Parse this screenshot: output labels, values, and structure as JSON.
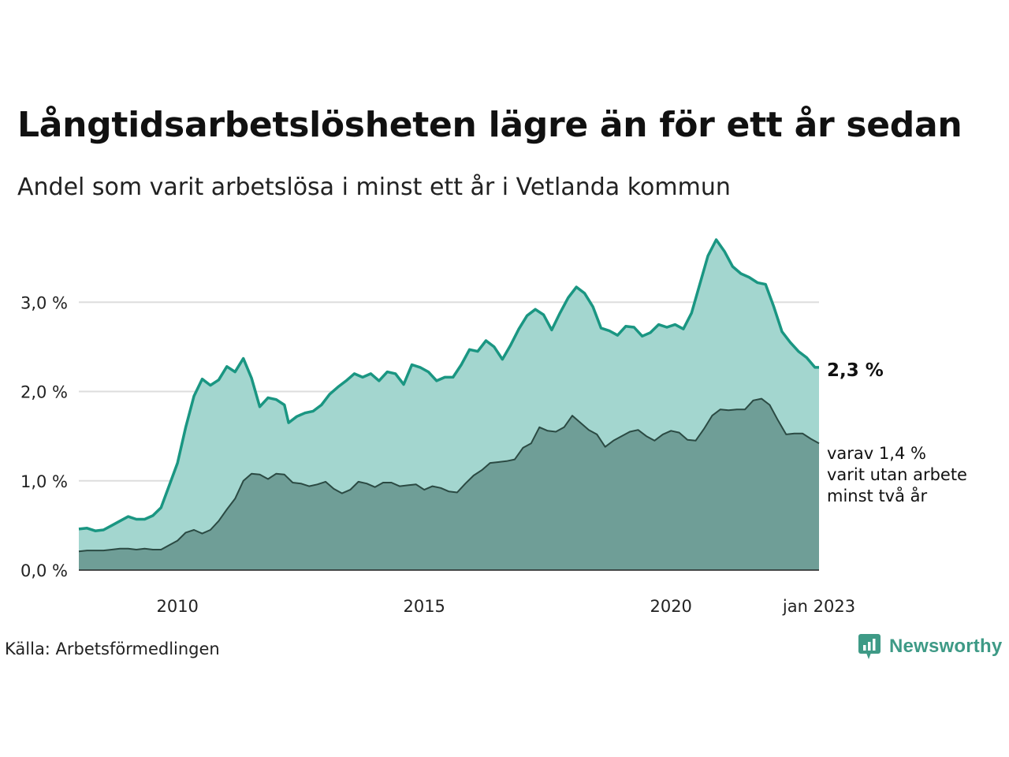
{
  "title": "Långtidsarbetslösheten lägre än för ett år sedan",
  "subtitle": "Andel som varit arbetslösa i minst ett år i Vetlanda kommun",
  "source": "Källa: Arbetsförmedlingen",
  "brand": {
    "name": "Newsworthy",
    "logo_icon": "newsworthy-logo-icon",
    "color": "#3e9a86"
  },
  "colors": {
    "series1_line": "#1a9682",
    "series1_fill": "#a3d6cf",
    "series2_line": "#2b4a43",
    "series2_fill": "#6f9e97",
    "grid": "#dddddd"
  },
  "chart_data": {
    "type": "area",
    "xlim": [
      "2008-01",
      "2023-01"
    ],
    "ylim": [
      0,
      3.7
    ],
    "y_ticks": [
      0,
      1,
      2,
      3
    ],
    "y_tick_labels": [
      "0,0 %",
      "1,0 %",
      "2,0 %",
      "3,0 %"
    ],
    "x_tick_values": [
      "2010-01",
      "2015-01",
      "2020-01",
      "2023-01"
    ],
    "x_tick_labels": [
      "2010",
      "2015",
      "2020",
      "jan 2023"
    ],
    "grid": true,
    "end_labels": [
      "2,3 %",
      "varav 1,4 %",
      "varit utan arbete",
      "minst två år"
    ],
    "series": [
      {
        "points": [
          [
            "2008-01",
            0.46
          ],
          [
            "2008-03",
            0.47
          ],
          [
            "2008-05",
            0.44
          ],
          [
            "2008-07",
            0.45
          ],
          [
            "2008-09",
            0.5
          ],
          [
            "2008-11",
            0.55
          ],
          [
            "2009-01",
            0.6
          ],
          [
            "2009-03",
            0.57
          ],
          [
            "2009-05",
            0.57
          ],
          [
            "2009-07",
            0.61
          ],
          [
            "2009-09",
            0.7
          ],
          [
            "2009-11",
            0.95
          ],
          [
            "2010-01",
            1.2
          ],
          [
            "2010-03",
            1.6
          ],
          [
            "2010-05",
            1.95
          ],
          [
            "2010-07",
            2.14
          ],
          [
            "2010-09",
            2.07
          ],
          [
            "2010-11",
            2.13
          ],
          [
            "2011-01",
            2.28
          ],
          [
            "2011-03",
            2.22
          ],
          [
            "2011-05",
            2.37
          ],
          [
            "2011-07",
            2.15
          ],
          [
            "2011-09",
            1.83
          ],
          [
            "2011-11",
            1.93
          ],
          [
            "2012-01",
            1.91
          ],
          [
            "2012-03",
            1.85
          ],
          [
            "2012-04",
            1.65
          ],
          [
            "2012-06",
            1.72
          ],
          [
            "2012-08",
            1.76
          ],
          [
            "2012-10",
            1.78
          ],
          [
            "2012-12",
            1.85
          ],
          [
            "2013-02",
            1.97
          ],
          [
            "2013-04",
            2.05
          ],
          [
            "2013-06",
            2.12
          ],
          [
            "2013-08",
            2.2
          ],
          [
            "2013-10",
            2.16
          ],
          [
            "2013-12",
            2.2
          ],
          [
            "2014-02",
            2.12
          ],
          [
            "2014-04",
            2.22
          ],
          [
            "2014-06",
            2.2
          ],
          [
            "2014-08",
            2.08
          ],
          [
            "2014-10",
            2.3
          ],
          [
            "2014-12",
            2.27
          ],
          [
            "2015-02",
            2.22
          ],
          [
            "2015-04",
            2.12
          ],
          [
            "2015-06",
            2.16
          ],
          [
            "2015-08",
            2.16
          ],
          [
            "2015-10",
            2.3
          ],
          [
            "2015-12",
            2.47
          ],
          [
            "2016-02",
            2.45
          ],
          [
            "2016-04",
            2.57
          ],
          [
            "2016-06",
            2.5
          ],
          [
            "2016-08",
            2.36
          ],
          [
            "2016-10",
            2.52
          ],
          [
            "2016-12",
            2.7
          ],
          [
            "2017-02",
            2.85
          ],
          [
            "2017-04",
            2.92
          ],
          [
            "2017-06",
            2.86
          ],
          [
            "2017-08",
            2.69
          ],
          [
            "2017-10",
            2.88
          ],
          [
            "2017-12",
            3.05
          ],
          [
            "2018-02",
            3.17
          ],
          [
            "2018-04",
            3.1
          ],
          [
            "2018-06",
            2.95
          ],
          [
            "2018-08",
            2.71
          ],
          [
            "2018-10",
            2.68
          ],
          [
            "2018-12",
            2.63
          ],
          [
            "2019-02",
            2.73
          ],
          [
            "2019-04",
            2.72
          ],
          [
            "2019-06",
            2.62
          ],
          [
            "2019-08",
            2.66
          ],
          [
            "2019-10",
            2.75
          ],
          [
            "2019-12",
            2.72
          ],
          [
            "2020-02",
            2.75
          ],
          [
            "2020-04",
            2.7
          ],
          [
            "2020-06",
            2.88
          ],
          [
            "2020-08",
            3.2
          ],
          [
            "2020-10",
            3.52
          ],
          [
            "2020-12",
            3.7
          ],
          [
            "2021-02",
            3.57
          ],
          [
            "2021-04",
            3.4
          ],
          [
            "2021-06",
            3.32
          ],
          [
            "2021-08",
            3.28
          ],
          [
            "2021-10",
            3.22
          ],
          [
            "2021-12",
            3.2
          ],
          [
            "2022-02",
            2.95
          ],
          [
            "2022-04",
            2.67
          ],
          [
            "2022-06",
            2.55
          ],
          [
            "2022-08",
            2.45
          ],
          [
            "2022-10",
            2.38
          ],
          [
            "2022-12",
            2.27
          ],
          [
            "2023-01",
            2.27
          ]
        ]
      },
      {
        "points": [
          [
            "2008-01",
            0.21
          ],
          [
            "2008-03",
            0.22
          ],
          [
            "2008-05",
            0.22
          ],
          [
            "2008-07",
            0.22
          ],
          [
            "2008-09",
            0.23
          ],
          [
            "2008-11",
            0.24
          ],
          [
            "2009-01",
            0.24
          ],
          [
            "2009-03",
            0.23
          ],
          [
            "2009-05",
            0.24
          ],
          [
            "2009-07",
            0.23
          ],
          [
            "2009-09",
            0.23
          ],
          [
            "2009-11",
            0.28
          ],
          [
            "2010-01",
            0.33
          ],
          [
            "2010-03",
            0.42
          ],
          [
            "2010-05",
            0.45
          ],
          [
            "2010-07",
            0.41
          ],
          [
            "2010-09",
            0.45
          ],
          [
            "2010-11",
            0.55
          ],
          [
            "2011-01",
            0.68
          ],
          [
            "2011-03",
            0.8
          ],
          [
            "2011-05",
            1.0
          ],
          [
            "2011-07",
            1.08
          ],
          [
            "2011-09",
            1.07
          ],
          [
            "2011-11",
            1.02
          ],
          [
            "2012-01",
            1.08
          ],
          [
            "2012-03",
            1.07
          ],
          [
            "2012-05",
            0.98
          ],
          [
            "2012-07",
            0.97
          ],
          [
            "2012-09",
            0.94
          ],
          [
            "2012-11",
            0.96
          ],
          [
            "2013-01",
            0.99
          ],
          [
            "2013-03",
            0.91
          ],
          [
            "2013-05",
            0.86
          ],
          [
            "2013-07",
            0.9
          ],
          [
            "2013-09",
            0.99
          ],
          [
            "2013-11",
            0.97
          ],
          [
            "2014-01",
            0.93
          ],
          [
            "2014-03",
            0.98
          ],
          [
            "2014-05",
            0.98
          ],
          [
            "2014-07",
            0.94
          ],
          [
            "2014-09",
            0.95
          ],
          [
            "2014-11",
            0.96
          ],
          [
            "2015-01",
            0.9
          ],
          [
            "2015-03",
            0.94
          ],
          [
            "2015-05",
            0.92
          ],
          [
            "2015-07",
            0.88
          ],
          [
            "2015-09",
            0.87
          ],
          [
            "2015-11",
            0.97
          ],
          [
            "2016-01",
            1.06
          ],
          [
            "2016-03",
            1.12
          ],
          [
            "2016-05",
            1.2
          ],
          [
            "2016-07",
            1.21
          ],
          [
            "2016-09",
            1.22
          ],
          [
            "2016-11",
            1.24
          ],
          [
            "2017-01",
            1.37
          ],
          [
            "2017-03",
            1.42
          ],
          [
            "2017-05",
            1.6
          ],
          [
            "2017-07",
            1.56
          ],
          [
            "2017-09",
            1.55
          ],
          [
            "2017-11",
            1.6
          ],
          [
            "2018-01",
            1.73
          ],
          [
            "2018-03",
            1.65
          ],
          [
            "2018-05",
            1.57
          ],
          [
            "2018-07",
            1.52
          ],
          [
            "2018-09",
            1.38
          ],
          [
            "2018-11",
            1.45
          ],
          [
            "2019-01",
            1.5
          ],
          [
            "2019-03",
            1.55
          ],
          [
            "2019-05",
            1.57
          ],
          [
            "2019-07",
            1.5
          ],
          [
            "2019-09",
            1.45
          ],
          [
            "2019-11",
            1.52
          ],
          [
            "2020-01",
            1.56
          ],
          [
            "2020-03",
            1.54
          ],
          [
            "2020-05",
            1.46
          ],
          [
            "2020-07",
            1.45
          ],
          [
            "2020-09",
            1.58
          ],
          [
            "2020-11",
            1.73
          ],
          [
            "2021-01",
            1.8
          ],
          [
            "2021-03",
            1.79
          ],
          [
            "2021-05",
            1.8
          ],
          [
            "2021-07",
            1.8
          ],
          [
            "2021-09",
            1.9
          ],
          [
            "2021-11",
            1.92
          ],
          [
            "2022-01",
            1.85
          ],
          [
            "2022-03",
            1.68
          ],
          [
            "2022-05",
            1.52
          ],
          [
            "2022-07",
            1.53
          ],
          [
            "2022-09",
            1.53
          ],
          [
            "2022-11",
            1.47
          ],
          [
            "2023-01",
            1.42
          ]
        ]
      }
    ]
  }
}
